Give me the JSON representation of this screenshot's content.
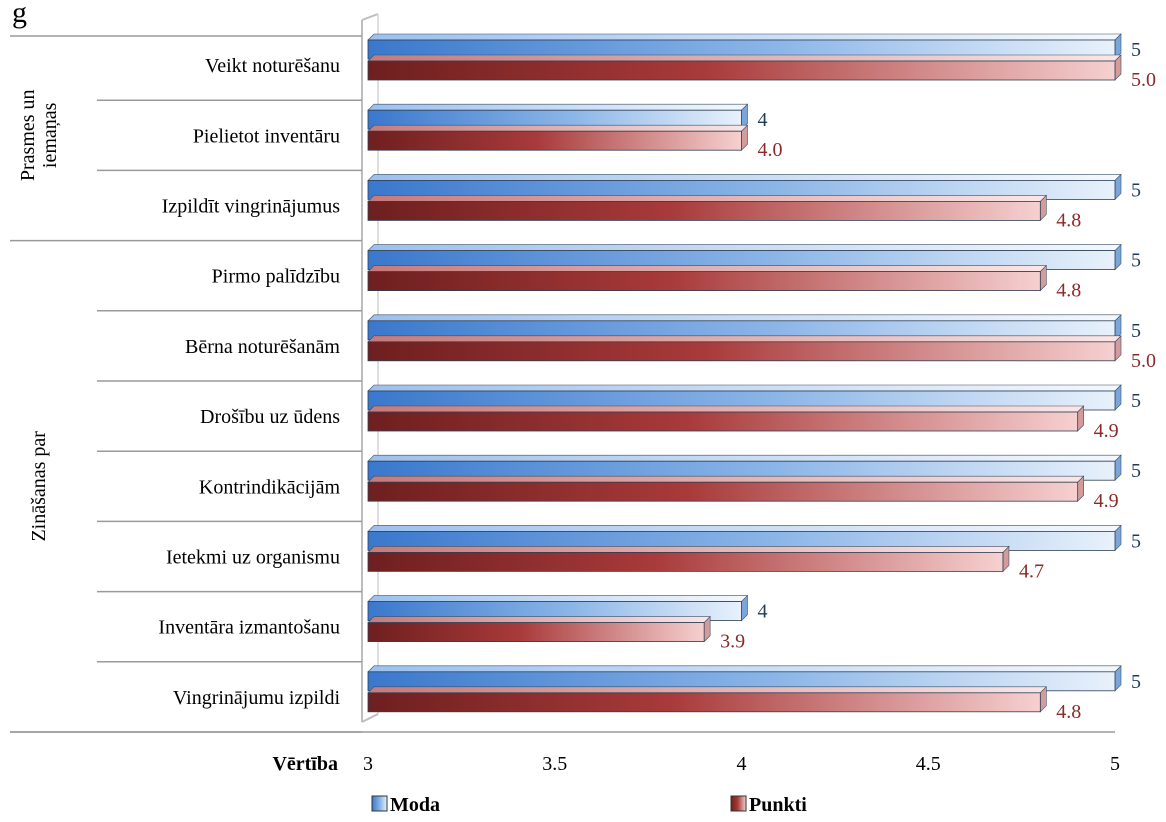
{
  "chart_data": {
    "type": "bar",
    "orientation": "horizontal",
    "title_fragment": "g",
    "xlabel": "Vērtība",
    "xlim": [
      3,
      5
    ],
    "x_ticks": [
      "3",
      "3.5",
      "4",
      "4.5",
      "5"
    ],
    "categories": [
      "Veikt noturēšanu",
      "Pielietot inventāru",
      "Izpildīt vingrinājumus",
      "Pirmo palīdzību",
      "Bērna noturēšanām",
      "Drošību uz ūdens",
      "Kontrindikācijām",
      "Ietekmi uz organismu",
      "Inventāra izmantošanu",
      "Vingrinājumu izpildi"
    ],
    "groups": [
      {
        "label_lines": [
          "Prasmes un",
          "iemaņas"
        ],
        "categories": [
          0,
          1,
          2
        ]
      },
      {
        "label_lines": [
          "Zināšanas par"
        ],
        "categories": [
          3,
          4,
          5,
          6,
          7,
          8,
          9
        ]
      }
    ],
    "series": [
      {
        "name": "Moda",
        "color": "#4a86d4",
        "values": [
          5,
          4,
          5,
          5,
          5,
          5,
          5,
          5,
          4,
          5
        ],
        "labels": [
          "5",
          "4",
          "5",
          "5",
          "5",
          "5",
          "5",
          "5",
          "4",
          "5"
        ],
        "label_color": "#1f3b5c"
      },
      {
        "name": "Punkti",
        "color": "#8b2a2a",
        "values": [
          5.0,
          4.0,
          4.8,
          4.8,
          5.0,
          4.9,
          4.9,
          4.7,
          3.9,
          4.8
        ],
        "labels": [
          "5.0",
          "4.0",
          "4.8",
          "4.8",
          "5.0",
          "4.9",
          "4.9",
          "4.7",
          "3.9",
          "4.8"
        ],
        "label_color": "#8b2a2a"
      }
    ],
    "legend_position": "bottom",
    "grid": false
  }
}
